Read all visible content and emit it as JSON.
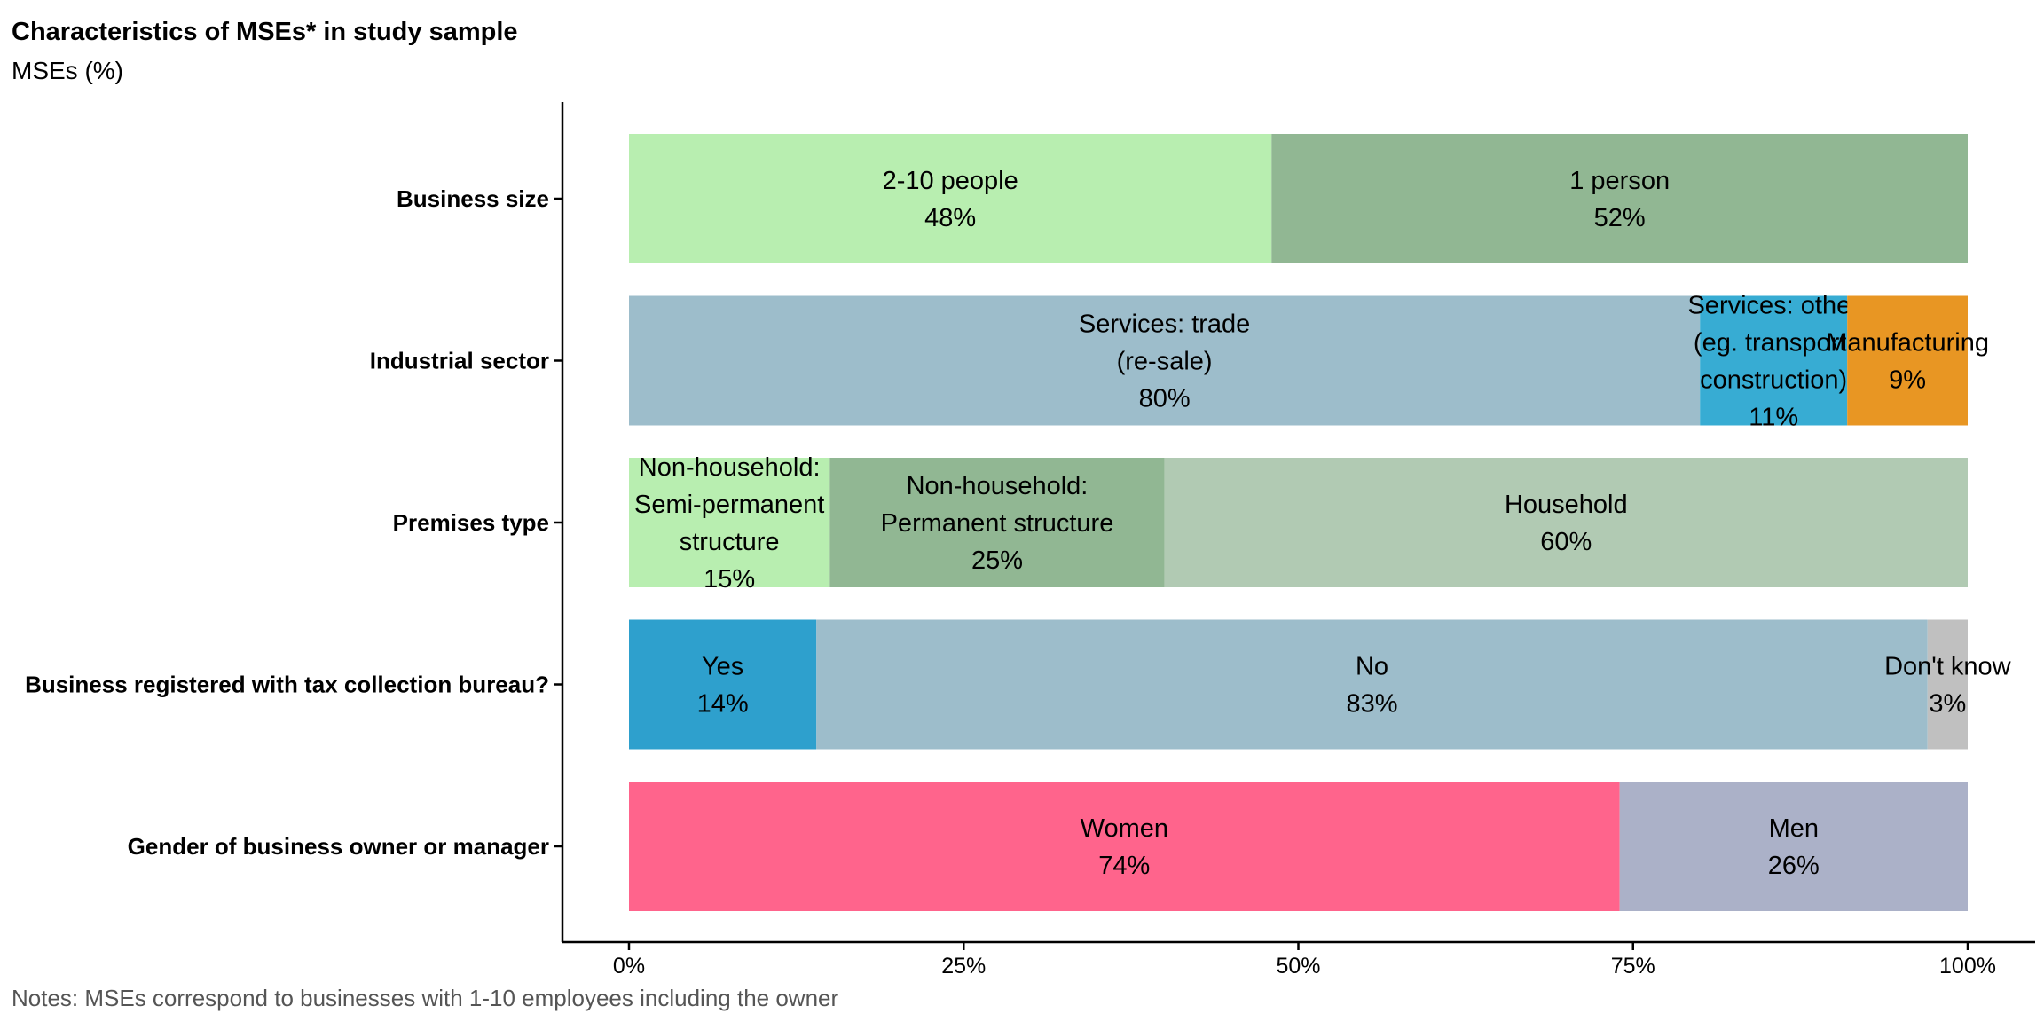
{
  "chart_data": {
    "type": "bar",
    "orientation": "horizontal",
    "stacked": true,
    "title": "Characteristics of MSEs* in study sample",
    "subtitle": "MSEs (%)",
    "note": "Notes: MSEs correspond to businesses with 1-10 employees including the owner",
    "xlim": [
      0,
      100
    ],
    "x_ticks": [
      "0%",
      "25%",
      "50%",
      "75%",
      "100%"
    ],
    "grid": false,
    "legend": "none",
    "categories": [
      {
        "label": "Business size",
        "segments": [
          {
            "lines": [
              "2-10 people"
            ],
            "value": 48,
            "value_label": "48%",
            "color": "#b8eeb0"
          },
          {
            "lines": [
              "1 person"
            ],
            "value": 52,
            "value_label": "52%",
            "color": "#91b793"
          }
        ]
      },
      {
        "label": "Industrial sector",
        "segments": [
          {
            "lines": [
              "Services: trade",
              "(re-sale)"
            ],
            "value": 80,
            "value_label": "80%",
            "color": "#9dbdcb"
          },
          {
            "lines": [
              "Services: other",
              "(eg. transport,",
              "construction)"
            ],
            "value": 11,
            "value_label": "11%",
            "color": "#37acd3"
          },
          {
            "lines": [
              "Manufacturing"
            ],
            "value": 9,
            "value_label": "9%",
            "color": "#e89623"
          }
        ]
      },
      {
        "label": "Premises type",
        "segments": [
          {
            "lines": [
              "Non-household:",
              "Semi-permanent",
              "structure"
            ],
            "value": 15,
            "value_label": "15%",
            "color": "#b8eeb0"
          },
          {
            "lines": [
              "Non-household:",
              "Permanent structure"
            ],
            "value": 25,
            "value_label": "25%",
            "color": "#91b793"
          },
          {
            "lines": [
              "Household"
            ],
            "value": 60,
            "value_label": "60%",
            "color": "#b1cab3"
          }
        ]
      },
      {
        "label": "Business registered with tax collection bureau?",
        "segments": [
          {
            "lines": [
              "Yes"
            ],
            "value": 14,
            "value_label": "14%",
            "color": "#2ea0cd"
          },
          {
            "lines": [
              "No"
            ],
            "value": 83,
            "value_label": "83%",
            "color": "#9dbdcb"
          },
          {
            "lines": [
              "Don't know"
            ],
            "value": 3,
            "value_label": "3%",
            "color": "#c0c0c0"
          }
        ]
      },
      {
        "label": "Gender of business owner or manager",
        "segments": [
          {
            "lines": [
              "Women"
            ],
            "value": 74,
            "value_label": "74%",
            "color": "#ff648c"
          },
          {
            "lines": [
              "Men"
            ],
            "value": 26,
            "value_label": "26%",
            "color": "#abb1c8"
          }
        ]
      }
    ]
  }
}
